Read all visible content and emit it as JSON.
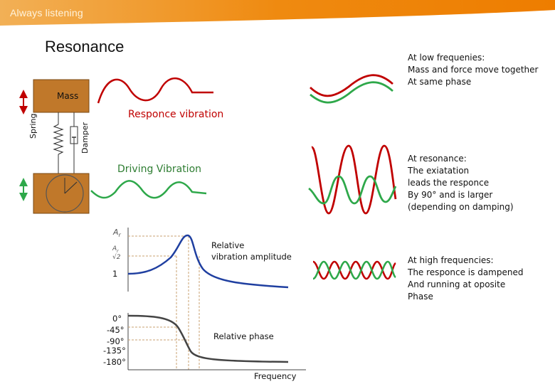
{
  "header": {
    "tagline": "Always listening",
    "accent": "#ee7d00"
  },
  "slide": {
    "title": "Resonance"
  },
  "model": {
    "mass_label": "Mass",
    "spring_label": "Spring",
    "damper_label": "Damper",
    "response_label": "Responce vibration",
    "driving_label": "Driving Vibration",
    "colors": {
      "mass": "#c0782a",
      "response": "#c00000",
      "driving": "#2ea84a"
    }
  },
  "graphs": {
    "amp_axis_label": "A",
    "amp_axis_sub": "r",
    "amp_level_label": "1",
    "amp_curve_label": "Relative\nvibration amplitude",
    "phase_ticks": [
      "0°",
      "-45°",
      "-90°",
      "-135°",
      "-180°"
    ],
    "phase_curve_label": "Relative phase",
    "x_axis_label": "Frequency",
    "colors": {
      "amplitude": "#1f3fa0",
      "phase": "#444444"
    }
  },
  "notes": {
    "low": "At low frequenies:\nMass and force move together\nAt same phase",
    "resonance": "At resonance:\nThe exiatation\nleads the responce\nBy 90° and is larger\n(depending on damping)",
    "high": "At high frequencies:\nThe responce is dampened\nAnd running at oposite\nPhase"
  }
}
